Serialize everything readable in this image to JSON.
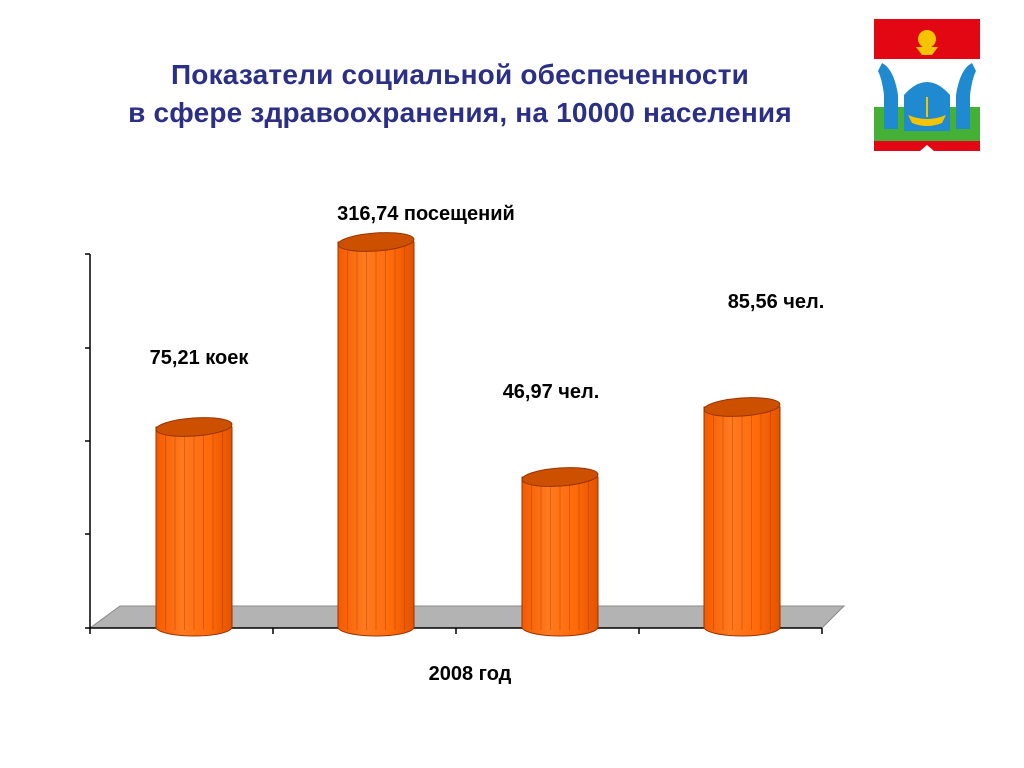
{
  "title": {
    "line1": "Показатели социальной обеспеченности",
    "line2": "в сфере здравоохранения, на 10000 населения"
  },
  "colors": {
    "title": "#2b2f86",
    "bar_front": "#ff6600",
    "bar_top": "#cc5000",
    "bar_edge": "#9a3300",
    "floor": "#b3b3b3"
  },
  "emblem": {
    "name": "coat-of-arms",
    "colors": [
      "#e30613",
      "#ffffff",
      "#1f8ad0",
      "#44b035",
      "#f4c400"
    ]
  },
  "chart_data": {
    "type": "bar",
    "style": "3d-cylinder",
    "categories": [
      "",
      "",
      "",
      ""
    ],
    "values": [
      75.21,
      316.74,
      46.97,
      85.56
    ],
    "bar_heights": [
      200,
      385,
      150,
      220
    ],
    "labels": [
      "75,21 коек",
      "316,74 посещений",
      "46,97 чел.",
      "85,56 чел."
    ],
    "xlabel": "2008 год",
    "ylabel": "",
    "grid": false,
    "legend": "none"
  }
}
